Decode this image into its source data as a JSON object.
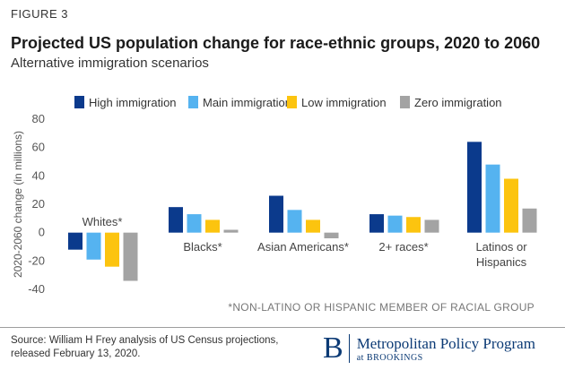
{
  "figure_label": "FIGURE 3",
  "chart_data": {
    "type": "bar",
    "title": "Projected US population change for race-ethnic groups, 2020 to 2060",
    "subtitle": "Alternative immigration scenarios",
    "ylabel": "2020-2060 change (in millions)",
    "xlabel": "",
    "ylim": [
      -40,
      80
    ],
    "yticks": [
      80,
      60,
      40,
      20,
      0,
      -20,
      -40
    ],
    "categories": [
      "Whites*",
      "Blacks*",
      "Asian Americans*",
      "2+ races*",
      "Latinos or Hispanics"
    ],
    "category_label_lines": [
      [
        "Whites*"
      ],
      [
        "Blacks*"
      ],
      [
        "Asian Americans*"
      ],
      [
        "2+ races*"
      ],
      [
        "Latinos or",
        "Hispanics"
      ]
    ],
    "series": [
      {
        "name": "High immigration",
        "color": "#0b3a8c",
        "values": [
          -12,
          18,
          26,
          13,
          64
        ]
      },
      {
        "name": "Main immigration",
        "color": "#55b3f0",
        "values": [
          -19,
          13,
          16,
          12,
          48
        ]
      },
      {
        "name": "Low immigration",
        "color": "#fcc40f",
        "values": [
          -24,
          9,
          9,
          11,
          38
        ]
      },
      {
        "name": "Zero immigration",
        "color": "#a3a3a3",
        "values": [
          -34,
          2,
          -4,
          9,
          17
        ]
      }
    ],
    "legend_position": "top",
    "annotation": "*NON-LATINO OR HISPANIC MEMBER OF RACIAL GROUP",
    "grid": false
  },
  "source": {
    "line1": "Source: William H Frey analysis of US Census projections,",
    "line2": "released February 13, 2020."
  },
  "brand": {
    "mark": "B",
    "name": "Metropolitan Policy Program",
    "sub": "at BROOKINGS"
  }
}
